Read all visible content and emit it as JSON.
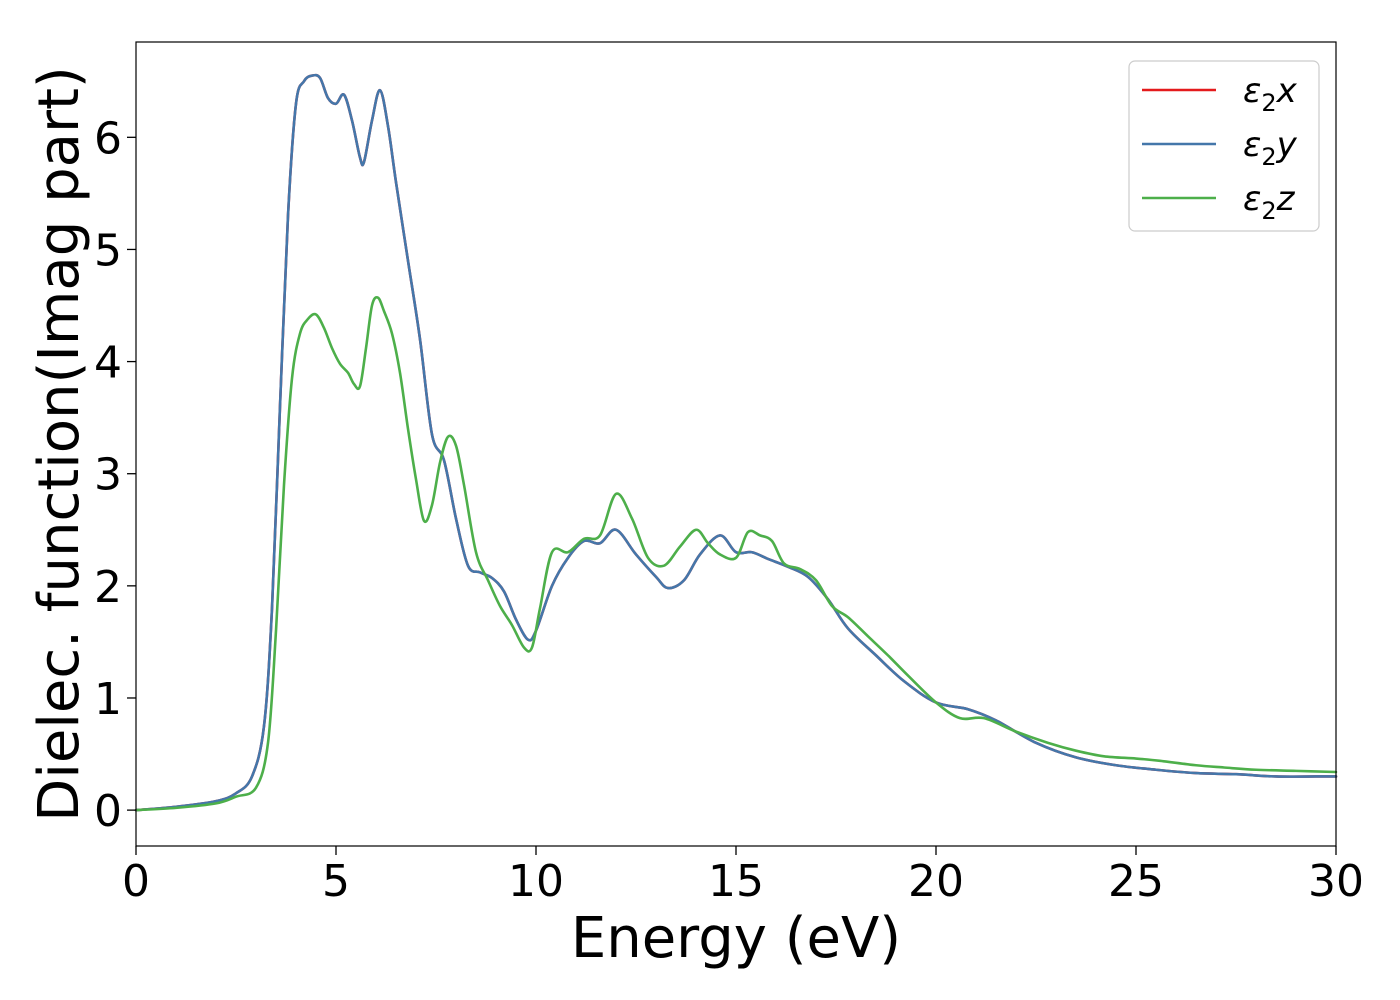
{
  "chart_data": {
    "type": "line",
    "title": "",
    "xlabel": "Energy (eV)",
    "ylabel": "Dielec. function(Imag part)",
    "xlim": [
      0,
      30
    ],
    "ylim": [
      -0.32,
      6.85
    ],
    "xticks": [
      0,
      5,
      10,
      15,
      20,
      25,
      30
    ],
    "yticks": [
      0,
      1,
      2,
      3,
      4,
      5,
      6
    ],
    "grid": false,
    "legend_position": "top-right",
    "series": [
      {
        "name": "ε₂x",
        "legend_base": "ε",
        "legend_sub": "2",
        "legend_var": "x",
        "color": "#e41a1c",
        "x": [
          0,
          1,
          2,
          2.5,
          2.9,
          3.2,
          3.4,
          3.6,
          3.8,
          4.0,
          4.2,
          4.4,
          4.6,
          4.8,
          5.0,
          5.2,
          5.4,
          5.6,
          5.7,
          5.9,
          6.1,
          6.3,
          6.5,
          6.8,
          7.1,
          7.4,
          7.7,
          8.0,
          8.3,
          8.6,
          8.9,
          9.2,
          9.5,
          9.8,
          10.0,
          10.4,
          10.8,
          11.2,
          11.6,
          12.0,
          12.5,
          13.0,
          13.3,
          13.7,
          14.1,
          14.6,
          15.0,
          15.4,
          15.8,
          16.3,
          16.8,
          17.3,
          17.8,
          18.5,
          19.2,
          20.0,
          20.8,
          21.5,
          22.5,
          23.5,
          24.5,
          25.5,
          26.5,
          27.5,
          28.5,
          29.5,
          30
        ],
        "y": [
          0,
          0.03,
          0.08,
          0.15,
          0.3,
          0.75,
          1.8,
          3.6,
          5.3,
          6.3,
          6.5,
          6.55,
          6.53,
          6.35,
          6.3,
          6.38,
          6.15,
          5.82,
          5.78,
          6.15,
          6.42,
          6.1,
          5.6,
          4.9,
          4.2,
          3.35,
          3.12,
          2.6,
          2.18,
          2.12,
          2.07,
          1.95,
          1.7,
          1.52,
          1.6,
          2.0,
          2.25,
          2.4,
          2.38,
          2.5,
          2.28,
          2.08,
          1.98,
          2.05,
          2.28,
          2.45,
          2.3,
          2.3,
          2.24,
          2.17,
          2.08,
          1.88,
          1.62,
          1.38,
          1.15,
          0.96,
          0.9,
          0.8,
          0.6,
          0.47,
          0.4,
          0.36,
          0.33,
          0.32,
          0.3,
          0.3,
          0.3
        ]
      },
      {
        "name": "ε₂y",
        "legend_base": "ε",
        "legend_sub": "2",
        "legend_var": "y",
        "color": "#4477aa",
        "x": [
          0,
          1,
          2,
          2.5,
          2.9,
          3.2,
          3.4,
          3.6,
          3.8,
          4.0,
          4.2,
          4.4,
          4.6,
          4.8,
          5.0,
          5.2,
          5.4,
          5.6,
          5.7,
          5.9,
          6.1,
          6.3,
          6.5,
          6.8,
          7.1,
          7.4,
          7.7,
          8.0,
          8.3,
          8.6,
          8.9,
          9.2,
          9.5,
          9.8,
          10.0,
          10.4,
          10.8,
          11.2,
          11.6,
          12.0,
          12.5,
          13.0,
          13.3,
          13.7,
          14.1,
          14.6,
          15.0,
          15.4,
          15.8,
          16.3,
          16.8,
          17.3,
          17.8,
          18.5,
          19.2,
          20.0,
          20.8,
          21.5,
          22.5,
          23.5,
          24.5,
          25.5,
          26.5,
          27.5,
          28.5,
          29.5,
          30
        ],
        "y": [
          0,
          0.03,
          0.08,
          0.15,
          0.3,
          0.75,
          1.8,
          3.6,
          5.3,
          6.3,
          6.5,
          6.55,
          6.53,
          6.35,
          6.3,
          6.38,
          6.15,
          5.82,
          5.78,
          6.15,
          6.42,
          6.1,
          5.6,
          4.9,
          4.2,
          3.35,
          3.12,
          2.6,
          2.18,
          2.12,
          2.07,
          1.95,
          1.7,
          1.52,
          1.6,
          2.0,
          2.25,
          2.4,
          2.38,
          2.5,
          2.28,
          2.08,
          1.98,
          2.05,
          2.28,
          2.45,
          2.3,
          2.3,
          2.24,
          2.17,
          2.08,
          1.88,
          1.62,
          1.38,
          1.15,
          0.96,
          0.9,
          0.8,
          0.6,
          0.47,
          0.4,
          0.36,
          0.33,
          0.32,
          0.3,
          0.3,
          0.3
        ]
      },
      {
        "name": "ε₂z",
        "legend_base": "ε",
        "legend_sub": "2",
        "legend_var": "z",
        "color": "#4daf4a",
        "x": [
          0,
          1,
          2,
          2.5,
          3.0,
          3.3,
          3.5,
          3.7,
          3.9,
          4.1,
          4.3,
          4.5,
          4.7,
          4.9,
          5.1,
          5.3,
          5.45,
          5.6,
          5.75,
          5.9,
          6.05,
          6.2,
          6.4,
          6.6,
          6.8,
          7.0,
          7.2,
          7.4,
          7.6,
          7.8,
          8.0,
          8.2,
          8.5,
          8.8,
          9.1,
          9.4,
          9.7,
          9.9,
          10.1,
          10.4,
          10.8,
          11.2,
          11.6,
          12.0,
          12.4,
          12.8,
          13.2,
          13.6,
          14.0,
          14.3,
          14.6,
          15.0,
          15.3,
          15.6,
          15.9,
          16.2,
          16.6,
          17.0,
          17.4,
          17.8,
          18.3,
          18.8,
          19.3,
          20.0,
          20.6,
          21.2,
          22.0,
          22.8,
          23.5,
          24.2,
          25.0,
          25.6,
          26.5,
          27.2,
          28.0,
          29.0,
          30
        ],
        "y": [
          0,
          0.02,
          0.06,
          0.12,
          0.2,
          0.6,
          1.6,
          2.9,
          3.85,
          4.25,
          4.38,
          4.42,
          4.3,
          4.12,
          3.98,
          3.9,
          3.8,
          3.78,
          4.12,
          4.5,
          4.57,
          4.45,
          4.25,
          3.9,
          3.4,
          2.95,
          2.58,
          2.72,
          3.1,
          3.33,
          3.25,
          2.9,
          2.3,
          2.05,
          1.82,
          1.65,
          1.45,
          1.45,
          1.8,
          2.3,
          2.3,
          2.42,
          2.45,
          2.82,
          2.6,
          2.25,
          2.18,
          2.35,
          2.5,
          2.38,
          2.28,
          2.25,
          2.48,
          2.45,
          2.4,
          2.2,
          2.15,
          2.05,
          1.82,
          1.72,
          1.55,
          1.38,
          1.2,
          0.96,
          0.82,
          0.82,
          0.7,
          0.6,
          0.53,
          0.48,
          0.46,
          0.44,
          0.4,
          0.38,
          0.36,
          0.35,
          0.34
        ]
      }
    ]
  }
}
